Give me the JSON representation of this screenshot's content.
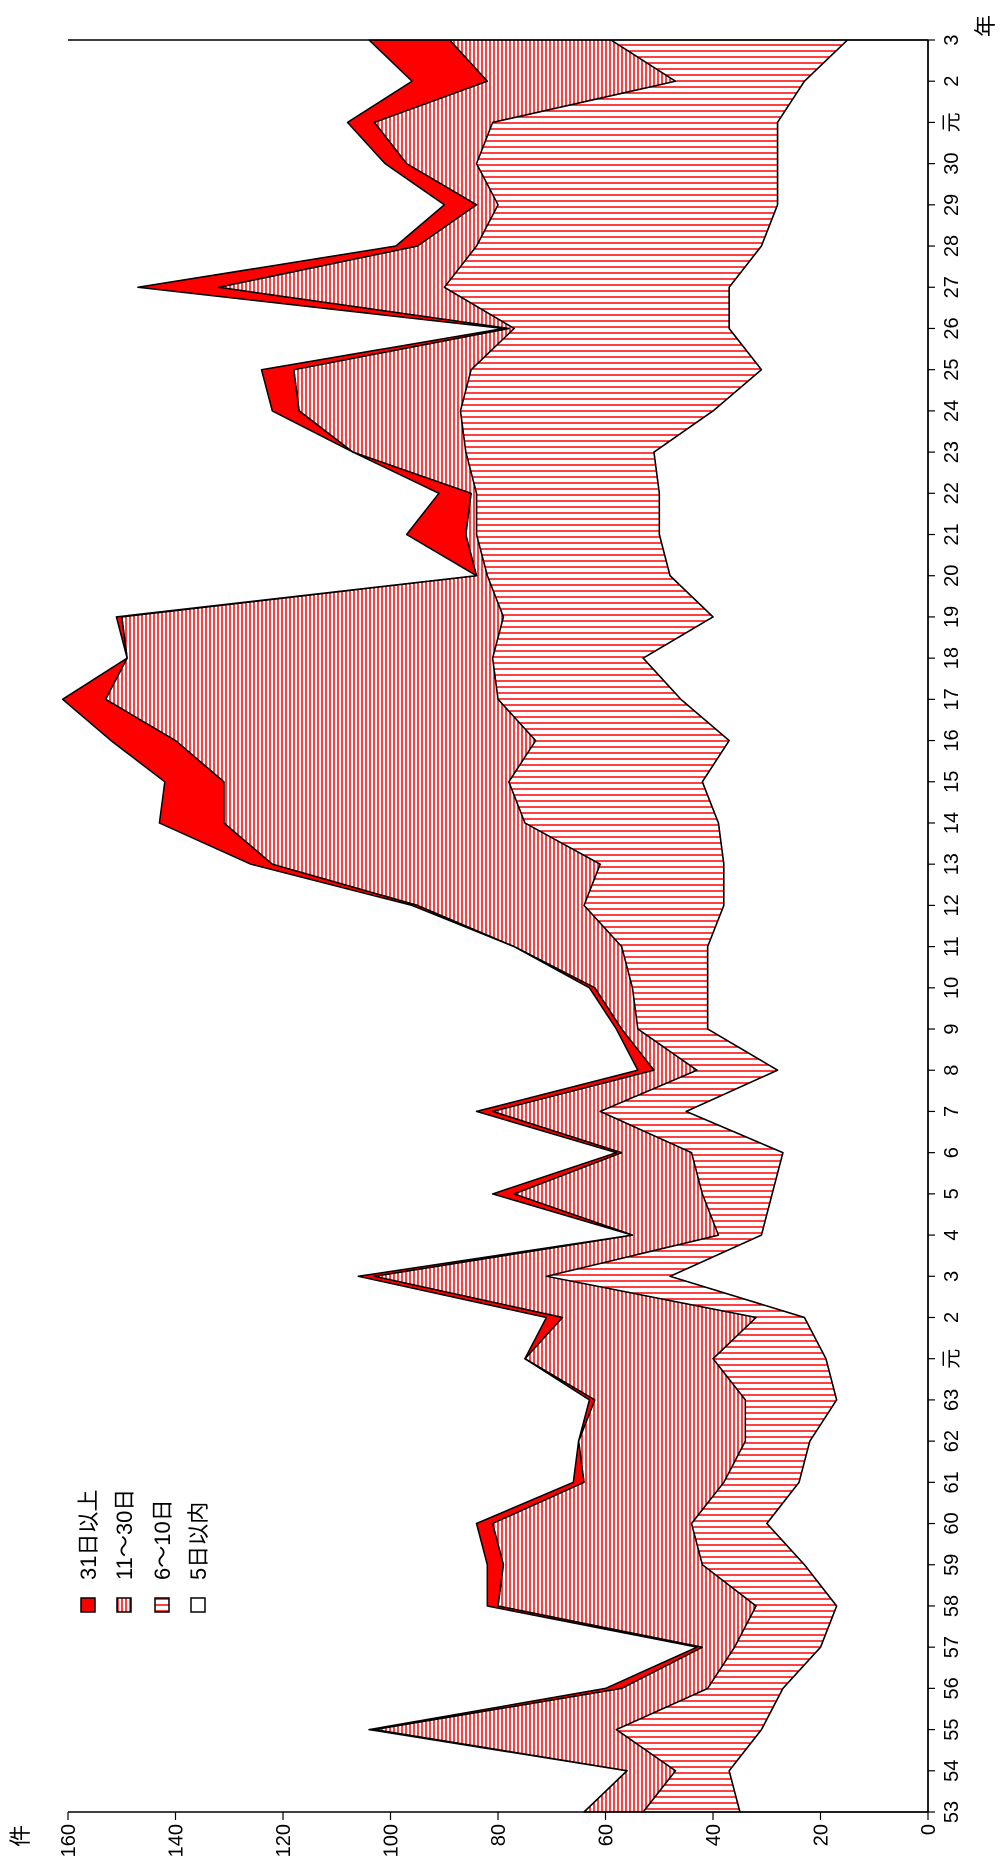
{
  "chart_data": {
    "type": "area",
    "stacked": true,
    "orientation": "rotated-90-clockwise",
    "ylabel": "件",
    "xlabel": "年",
    "ylim": [
      0,
      160
    ],
    "yticks": [
      "0",
      "20",
      "40",
      "60",
      "80",
      "100",
      "120",
      "140",
      "160"
    ],
    "categories": [
      "53",
      "54",
      "55",
      "56",
      "57",
      "58",
      "59",
      "60",
      "61",
      "62",
      "63",
      "元",
      "2",
      "3",
      "4",
      "5",
      "6",
      "7",
      "8",
      "9",
      "10",
      "11",
      "12",
      "13",
      "14",
      "15",
      "16",
      "17",
      "18",
      "19",
      "20",
      "21",
      "22",
      "23",
      "24",
      "25",
      "26",
      "27",
      "28",
      "29",
      "30",
      "元",
      "2",
      "3"
    ],
    "series": [
      {
        "name": "5日以内",
        "fill": "#ffffff",
        "values": [
          35,
          37,
          31,
          27,
          20,
          17,
          23,
          30,
          24,
          22,
          17,
          19,
          23,
          48,
          31,
          29,
          27,
          45,
          28,
          41,
          41,
          41,
          38,
          38,
          39,
          42,
          37,
          46,
          53,
          40,
          48,
          50,
          50,
          51,
          40,
          31,
          37,
          37,
          31,
          28,
          28,
          28,
          23,
          15
        ]
      },
      {
        "name": "6～10日",
        "fill": "hatch-vertical-red",
        "values": [
          18,
          10,
          27,
          14,
          16,
          15,
          19,
          14,
          14,
          12,
          17,
          21,
          9,
          23,
          8,
          13,
          17,
          16,
          15,
          13,
          14,
          16,
          26,
          23,
          36,
          36,
          36,
          34,
          28,
          39,
          34,
          34,
          34,
          35,
          47,
          54,
          40,
          53,
          53,
          52,
          56,
          53,
          24,
          44
        ]
      },
      {
        "name": "11～30日",
        "fill": "hatch-horizontal-red",
        "values": [
          11,
          9,
          45,
          16,
          6,
          48,
          37,
          37,
          26,
          31,
          28,
          35,
          36,
          32,
          16,
          35,
          13,
          20,
          8,
          3,
          7,
          20,
          31,
          61,
          56,
          53,
          67,
          73,
          68,
          71,
          2,
          2,
          1,
          21,
          30,
          33,
          1,
          42,
          11,
          4,
          13,
          22,
          35,
          30
        ]
      },
      {
        "name": "31日以上",
        "fill": "#ff0000",
        "values": [
          0,
          0,
          1,
          3,
          1,
          2,
          3,
          3,
          2,
          0,
          1,
          0,
          3,
          3,
          0,
          4,
          1,
          3,
          3,
          1,
          1,
          0,
          1,
          4,
          12,
          11,
          12,
          8,
          0,
          1,
          0,
          11,
          6,
          0,
          5,
          6,
          1,
          15,
          4,
          6,
          4,
          5,
          14,
          15
        ]
      }
    ],
    "legend_position": "top-left",
    "grid": false
  }
}
